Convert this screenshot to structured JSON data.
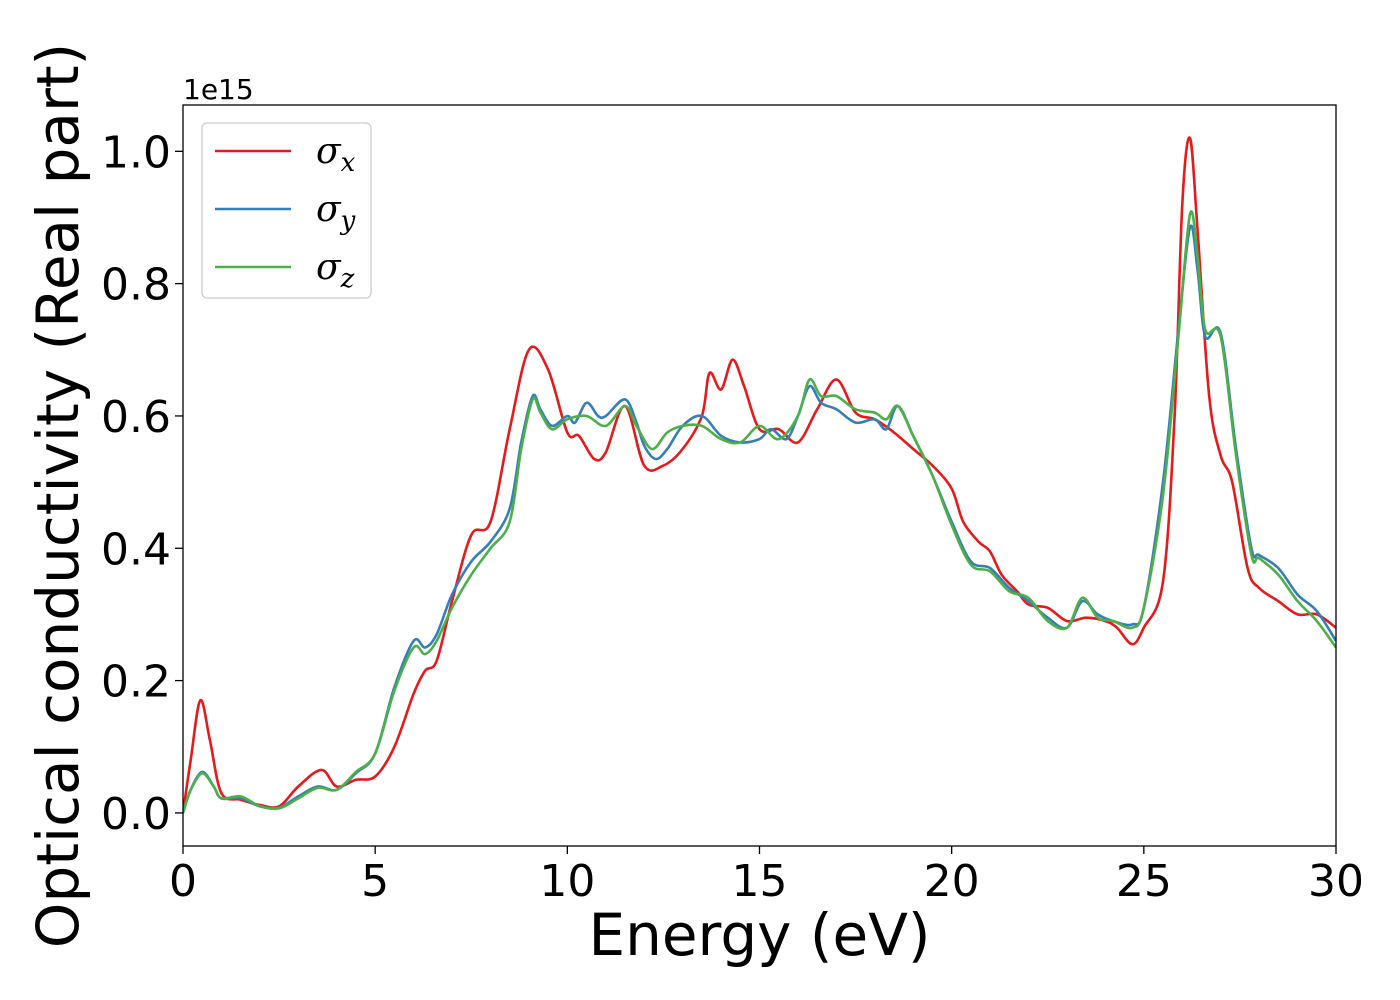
{
  "chart_data": {
    "type": "line",
    "title": "",
    "xlabel": "Energy (eV)",
    "ylabel": "Optical conductivity (Real part)",
    "y_offset_label": "1e15",
    "xlim": [
      0,
      30
    ],
    "ylim": [
      -0.05,
      1.07
    ],
    "x_ticks": [
      0,
      5,
      10,
      15,
      20,
      25,
      30
    ],
    "x_tick_labels": [
      "0",
      "5",
      "10",
      "15",
      "20",
      "25",
      "30"
    ],
    "y_ticks": [
      0.0,
      0.2,
      0.4,
      0.6,
      0.8,
      1.0
    ],
    "y_tick_labels": [
      "0.0",
      "0.2",
      "0.4",
      "0.6",
      "0.8",
      "1.0"
    ],
    "grid": false,
    "legend_position": "top-left",
    "series": [
      {
        "name": "σx",
        "symbol": "σ",
        "subscript": "x",
        "color": "#e41a1c",
        "points": [
          [
            0,
            0
          ],
          [
            0.2,
            0.08
          ],
          [
            0.45,
            0.17
          ],
          [
            0.7,
            0.11
          ],
          [
            1.0,
            0.03
          ],
          [
            1.5,
            0.02
          ],
          [
            2.0,
            0.012
          ],
          [
            2.5,
            0.01
          ],
          [
            3.0,
            0.04
          ],
          [
            3.6,
            0.065
          ],
          [
            4.0,
            0.04
          ],
          [
            4.5,
            0.05
          ],
          [
            5.0,
            0.055
          ],
          [
            5.5,
            0.1
          ],
          [
            6.0,
            0.18
          ],
          [
            6.3,
            0.215
          ],
          [
            6.6,
            0.23
          ],
          [
            7.0,
            0.32
          ],
          [
            7.5,
            0.42
          ],
          [
            8.0,
            0.44
          ],
          [
            8.5,
            0.58
          ],
          [
            9.0,
            0.7
          ],
          [
            9.5,
            0.67
          ],
          [
            10.0,
            0.575
          ],
          [
            10.3,
            0.57
          ],
          [
            10.7,
            0.535
          ],
          [
            11.0,
            0.545
          ],
          [
            11.5,
            0.615
          ],
          [
            12.0,
            0.525
          ],
          [
            12.5,
            0.525
          ],
          [
            13.0,
            0.55
          ],
          [
            13.5,
            0.6
          ],
          [
            13.7,
            0.665
          ],
          [
            14.0,
            0.64
          ],
          [
            14.3,
            0.685
          ],
          [
            14.6,
            0.645
          ],
          [
            15.0,
            0.58
          ],
          [
            15.5,
            0.58
          ],
          [
            16.0,
            0.56
          ],
          [
            16.5,
            0.61
          ],
          [
            17.0,
            0.655
          ],
          [
            17.5,
            0.605
          ],
          [
            18.0,
            0.595
          ],
          [
            18.5,
            0.575
          ],
          [
            19.0,
            0.55
          ],
          [
            19.5,
            0.525
          ],
          [
            20.0,
            0.49
          ],
          [
            20.3,
            0.44
          ],
          [
            20.7,
            0.41
          ],
          [
            21.0,
            0.395
          ],
          [
            21.3,
            0.36
          ],
          [
            21.7,
            0.335
          ],
          [
            22.0,
            0.315
          ],
          [
            22.5,
            0.31
          ],
          [
            23.0,
            0.29
          ],
          [
            23.5,
            0.295
          ],
          [
            24.0,
            0.29
          ],
          [
            24.3,
            0.28
          ],
          [
            24.7,
            0.255
          ],
          [
            25.0,
            0.28
          ],
          [
            25.5,
            0.35
          ],
          [
            25.8,
            0.6
          ],
          [
            26.0,
            0.92
          ],
          [
            26.2,
            1.02
          ],
          [
            26.4,
            0.88
          ],
          [
            26.7,
            0.63
          ],
          [
            27.0,
            0.54
          ],
          [
            27.3,
            0.5
          ],
          [
            27.7,
            0.37
          ],
          [
            28.0,
            0.34
          ],
          [
            28.5,
            0.32
          ],
          [
            29.0,
            0.3
          ],
          [
            29.5,
            0.3
          ],
          [
            30.0,
            0.28
          ]
        ]
      },
      {
        "name": "σy",
        "symbol": "σ",
        "subscript": "y",
        "color": "#377eb8",
        "points": [
          [
            0,
            0
          ],
          [
            0.2,
            0.035
          ],
          [
            0.5,
            0.062
          ],
          [
            0.8,
            0.04
          ],
          [
            1.0,
            0.022
          ],
          [
            1.5,
            0.022
          ],
          [
            2.0,
            0.01
          ],
          [
            2.5,
            0.008
          ],
          [
            3.0,
            0.025
          ],
          [
            3.5,
            0.04
          ],
          [
            4.0,
            0.035
          ],
          [
            4.5,
            0.06
          ],
          [
            5.0,
            0.09
          ],
          [
            5.5,
            0.19
          ],
          [
            6.0,
            0.26
          ],
          [
            6.3,
            0.25
          ],
          [
            6.6,
            0.27
          ],
          [
            7.0,
            0.33
          ],
          [
            7.5,
            0.38
          ],
          [
            8.0,
            0.41
          ],
          [
            8.5,
            0.46
          ],
          [
            8.8,
            0.56
          ],
          [
            9.1,
            0.63
          ],
          [
            9.3,
            0.61
          ],
          [
            9.6,
            0.585
          ],
          [
            10.0,
            0.6
          ],
          [
            10.2,
            0.59
          ],
          [
            10.5,
            0.62
          ],
          [
            10.8,
            0.6
          ],
          [
            11.0,
            0.6
          ],
          [
            11.5,
            0.625
          ],
          [
            11.8,
            0.59
          ],
          [
            12.0,
            0.555
          ],
          [
            12.3,
            0.535
          ],
          [
            12.6,
            0.55
          ],
          [
            13.0,
            0.585
          ],
          [
            13.5,
            0.6
          ],
          [
            14.0,
            0.57
          ],
          [
            14.5,
            0.56
          ],
          [
            15.0,
            0.565
          ],
          [
            15.3,
            0.58
          ],
          [
            15.7,
            0.565
          ],
          [
            16.0,
            0.6
          ],
          [
            16.3,
            0.645
          ],
          [
            16.6,
            0.62
          ],
          [
            17.0,
            0.61
          ],
          [
            17.5,
            0.59
          ],
          [
            18.0,
            0.595
          ],
          [
            18.3,
            0.58
          ],
          [
            18.6,
            0.615
          ],
          [
            19.0,
            0.57
          ],
          [
            19.5,
            0.51
          ],
          [
            20.0,
            0.44
          ],
          [
            20.5,
            0.38
          ],
          [
            21.0,
            0.37
          ],
          [
            21.5,
            0.34
          ],
          [
            22.0,
            0.32
          ],
          [
            22.5,
            0.295
          ],
          [
            23.0,
            0.28
          ],
          [
            23.4,
            0.32
          ],
          [
            23.8,
            0.3
          ],
          [
            24.2,
            0.29
          ],
          [
            24.7,
            0.285
          ],
          [
            25.0,
            0.31
          ],
          [
            25.5,
            0.5
          ],
          [
            25.9,
            0.73
          ],
          [
            26.2,
            0.885
          ],
          [
            26.4,
            0.82
          ],
          [
            26.6,
            0.72
          ],
          [
            27.0,
            0.725
          ],
          [
            27.4,
            0.55
          ],
          [
            27.8,
            0.4
          ],
          [
            28.0,
            0.39
          ],
          [
            28.5,
            0.37
          ],
          [
            29.0,
            0.33
          ],
          [
            29.5,
            0.305
          ],
          [
            30.0,
            0.26
          ]
        ]
      },
      {
        "name": "σz",
        "symbol": "σ",
        "subscript": "z",
        "color": "#4daf4a",
        "points": [
          [
            0,
            0
          ],
          [
            0.2,
            0.035
          ],
          [
            0.5,
            0.06
          ],
          [
            0.8,
            0.04
          ],
          [
            1.0,
            0.022
          ],
          [
            1.5,
            0.025
          ],
          [
            2.0,
            0.01
          ],
          [
            2.5,
            0.007
          ],
          [
            3.0,
            0.022
          ],
          [
            3.5,
            0.038
          ],
          [
            4.0,
            0.035
          ],
          [
            4.5,
            0.062
          ],
          [
            5.0,
            0.09
          ],
          [
            5.5,
            0.185
          ],
          [
            6.0,
            0.25
          ],
          [
            6.3,
            0.24
          ],
          [
            6.6,
            0.26
          ],
          [
            7.0,
            0.31
          ],
          [
            7.5,
            0.36
          ],
          [
            8.0,
            0.4
          ],
          [
            8.5,
            0.44
          ],
          [
            8.8,
            0.55
          ],
          [
            9.1,
            0.625
          ],
          [
            9.3,
            0.605
          ],
          [
            9.6,
            0.58
          ],
          [
            10.0,
            0.595
          ],
          [
            10.5,
            0.6
          ],
          [
            11.0,
            0.585
          ],
          [
            11.5,
            0.615
          ],
          [
            11.8,
            0.585
          ],
          [
            12.2,
            0.55
          ],
          [
            12.6,
            0.575
          ],
          [
            13.0,
            0.585
          ],
          [
            13.5,
            0.585
          ],
          [
            14.0,
            0.565
          ],
          [
            14.5,
            0.56
          ],
          [
            15.0,
            0.585
          ],
          [
            15.5,
            0.565
          ],
          [
            16.0,
            0.6
          ],
          [
            16.3,
            0.655
          ],
          [
            16.6,
            0.63
          ],
          [
            17.0,
            0.63
          ],
          [
            17.5,
            0.61
          ],
          [
            18.0,
            0.605
          ],
          [
            18.3,
            0.595
          ],
          [
            18.6,
            0.615
          ],
          [
            19.0,
            0.57
          ],
          [
            19.5,
            0.51
          ],
          [
            20.0,
            0.435
          ],
          [
            20.5,
            0.375
          ],
          [
            21.0,
            0.365
          ],
          [
            21.5,
            0.335
          ],
          [
            22.0,
            0.325
          ],
          [
            22.5,
            0.29
          ],
          [
            23.0,
            0.28
          ],
          [
            23.4,
            0.325
          ],
          [
            23.8,
            0.295
          ],
          [
            24.2,
            0.29
          ],
          [
            24.7,
            0.28
          ],
          [
            25.0,
            0.31
          ],
          [
            25.5,
            0.48
          ],
          [
            25.9,
            0.72
          ],
          [
            26.2,
            0.905
          ],
          [
            26.4,
            0.84
          ],
          [
            26.6,
            0.73
          ],
          [
            27.0,
            0.72
          ],
          [
            27.4,
            0.54
          ],
          [
            27.8,
            0.39
          ],
          [
            28.0,
            0.385
          ],
          [
            28.5,
            0.36
          ],
          [
            29.0,
            0.32
          ],
          [
            29.5,
            0.29
          ],
          [
            30.0,
            0.25
          ]
        ]
      }
    ]
  }
}
